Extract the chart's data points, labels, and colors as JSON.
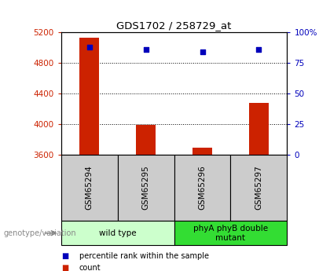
{
  "title": "GDS1702 / 258729_at",
  "samples": [
    "GSM65294",
    "GSM65295",
    "GSM65296",
    "GSM65297"
  ],
  "counts": [
    5130,
    3985,
    3690,
    4280
  ],
  "percentiles": [
    88,
    86,
    84,
    86
  ],
  "ylim_left": [
    3600,
    5200
  ],
  "ylim_right": [
    0,
    100
  ],
  "yticks_left": [
    3600,
    4000,
    4400,
    4800,
    5200
  ],
  "yticks_right": [
    0,
    25,
    50,
    75,
    100
  ],
  "ytick_labels_right": [
    "0",
    "25",
    "50",
    "75",
    "100%"
  ],
  "left_color": "#cc2200",
  "right_color": "#0000bb",
  "bar_color": "#cc2200",
  "dot_color": "#0000bb",
  "grid_color": "#000000",
  "groups": [
    {
      "label": "wild type",
      "samples": [
        0,
        1
      ],
      "bg": "#ccffcc"
    },
    {
      "label": "phyA phyB double\nmutant",
      "samples": [
        2,
        3
      ],
      "bg": "#33dd33"
    }
  ],
  "sample_box_bg": "#cccccc",
  "legend_items": [
    {
      "color": "#cc2200",
      "label": "count"
    },
    {
      "color": "#0000bb",
      "label": "percentile rank within the sample"
    }
  ],
  "genotype_label": "genotype/variation",
  "bar_width": 0.35
}
